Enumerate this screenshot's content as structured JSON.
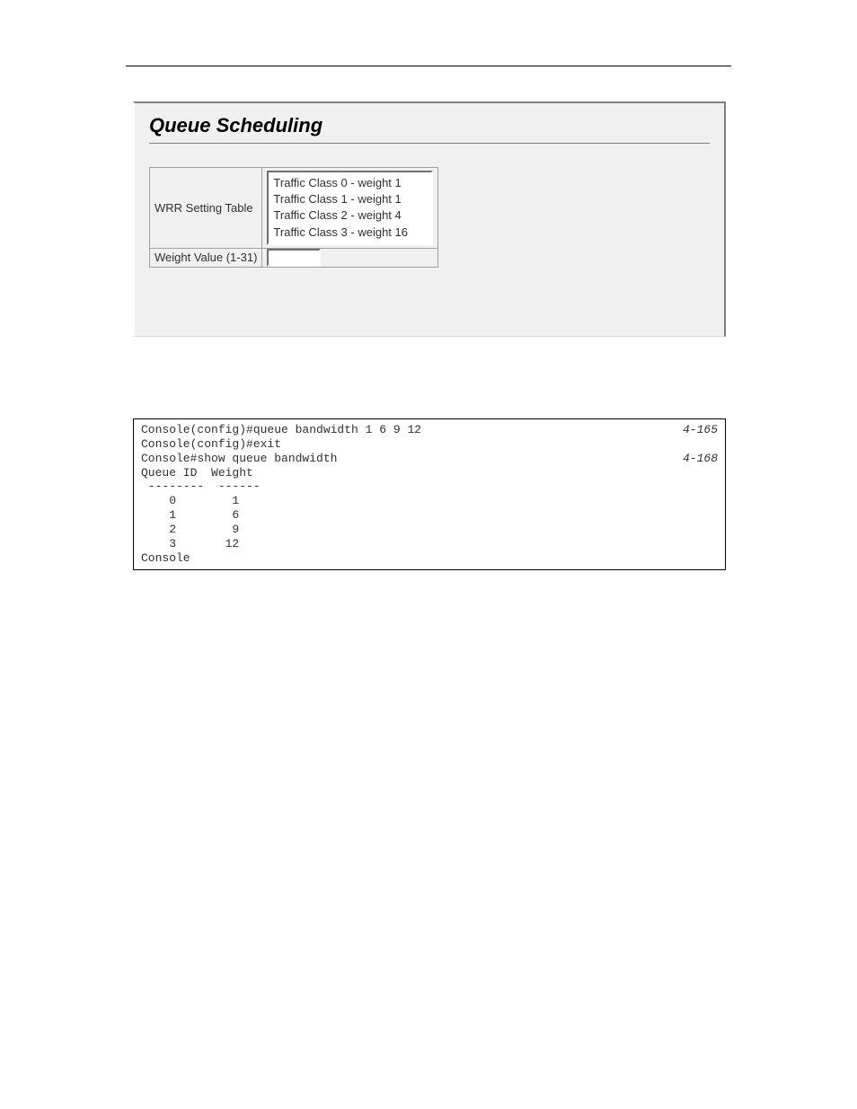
{
  "ui_panel": {
    "title": "Queue Scheduling",
    "bg_color": "#f0f0f0",
    "title_fontsize": 22,
    "label_fontsize": 13,
    "rows": {
      "wrr": {
        "label": "WRR Setting Table",
        "items": [
          "Traffic Class 0 - weight 1",
          "Traffic Class 1 - weight 1",
          "Traffic Class 2 - weight 4",
          "Traffic Class 3 - weight 16"
        ]
      },
      "weight_value": {
        "label": "Weight Value (1-31)",
        "value": ""
      }
    }
  },
  "console": {
    "font_family": "Courier New",
    "fontsize": 13,
    "lines": [
      {
        "text": "Console(config)#queue bandwidth 1 6 9 12",
        "ref": "4-165"
      },
      {
        "text": "Console(config)#exit",
        "ref": ""
      },
      {
        "text": "Console#show queue bandwidth",
        "ref": "4-168"
      },
      {
        "text": "Queue ID  Weight",
        "ref": ""
      },
      {
        "text": " --------  ------",
        "ref": ""
      },
      {
        "text": "    0        1",
        "ref": ""
      },
      {
        "text": "    1        6",
        "ref": ""
      },
      {
        "text": "    2        9",
        "ref": ""
      },
      {
        "text": "    3       12",
        "ref": ""
      },
      {
        "text": "Console",
        "ref": ""
      }
    ]
  }
}
